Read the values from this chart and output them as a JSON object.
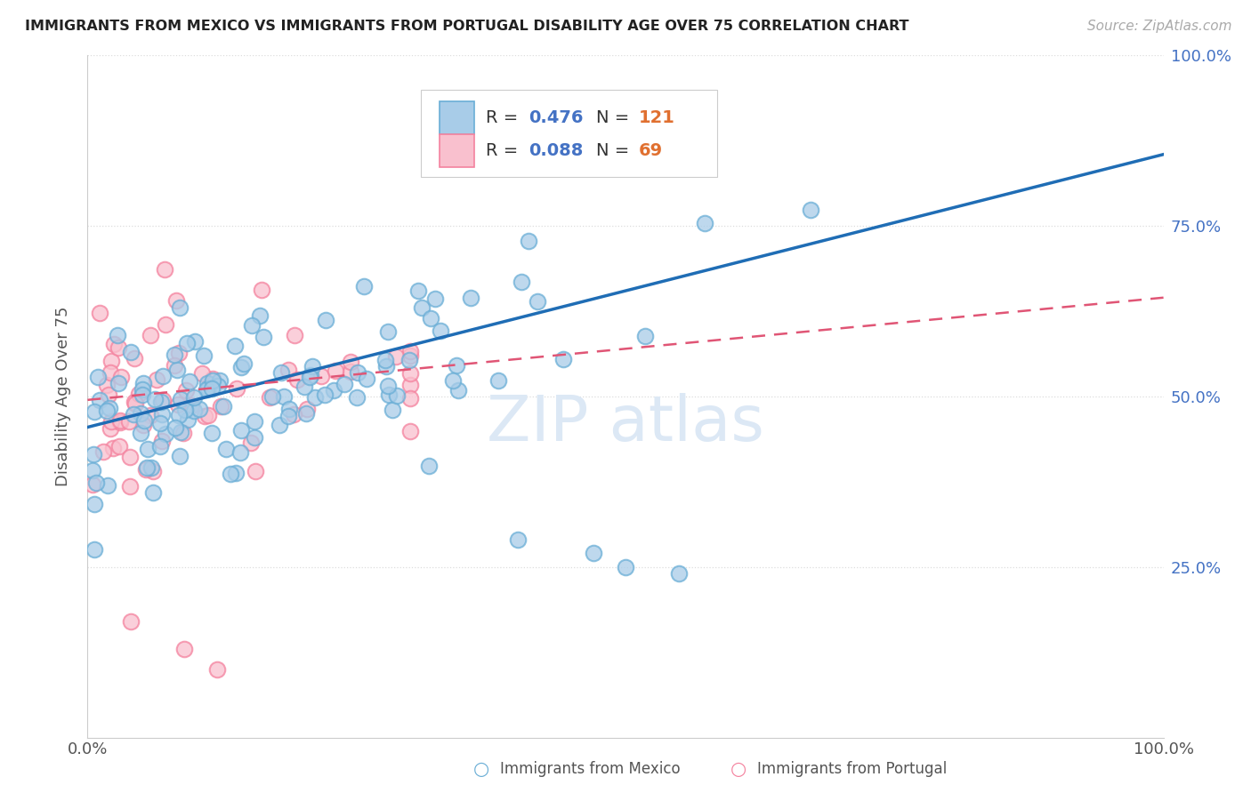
{
  "title": "IMMIGRANTS FROM MEXICO VS IMMIGRANTS FROM PORTUGAL DISABILITY AGE OVER 75 CORRELATION CHART",
  "source": "Source: ZipAtlas.com",
  "ylabel": "Disability Age Over 75",
  "xlim": [
    0.0,
    1.0
  ],
  "ylim": [
    0.0,
    1.0
  ],
  "ytick_vals": [
    0.25,
    0.5,
    0.75,
    1.0
  ],
  "ytick_labels": [
    "25.0%",
    "50.0%",
    "75.0%",
    "100.0%"
  ],
  "xtick_vals": [
    0.0,
    1.0
  ],
  "xtick_labels": [
    "0.0%",
    "100.0%"
  ],
  "legend_r_mexico": "0.476",
  "legend_n_mexico": "121",
  "legend_r_portugal": "0.088",
  "legend_n_portugal": "69",
  "mexico_fill_color": "#a8cce8",
  "mexico_edge_color": "#6aaed6",
  "portugal_fill_color": "#f9c0ce",
  "portugal_edge_color": "#f4829e",
  "mexico_line_color": "#1f6db5",
  "portugal_line_color": "#e05575",
  "background_color": "#ffffff",
  "grid_color": "#dddddd",
  "tick_color_right": "#4472c4",
  "watermark_color": "#dce8f5",
  "title_color": "#222222",
  "source_color": "#aaaaaa",
  "label_color": "#555555",
  "mexico_line_start_y": 0.455,
  "mexico_line_end_y": 0.855,
  "portugal_line_start_y": 0.495,
  "portugal_line_end_y": 0.645
}
